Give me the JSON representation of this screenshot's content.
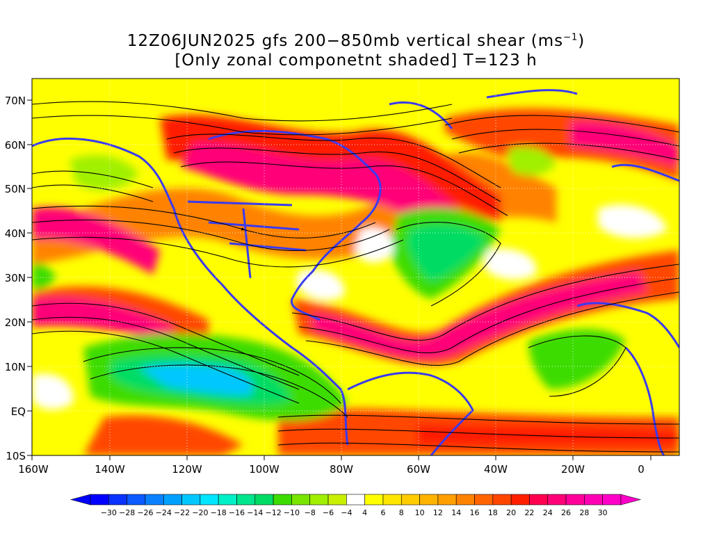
{
  "title": {
    "line1_prefix": "12Z06JUN2025 gfs 200−850mb vertical shear (ms",
    "line1_superscript": "−1",
    "line1_suffix": ")",
    "line2": "[Only zonal componetnt shaded] T=123 h"
  },
  "map": {
    "lon_labels": [
      "160W",
      "140W",
      "120W",
      "100W",
      "80W",
      "60W",
      "40W",
      "20W",
      "0"
    ],
    "lat_labels": [
      "70N",
      "60N",
      "50N",
      "40N",
      "30N",
      "20N",
      "10N",
      "EQ",
      "10S"
    ]
  },
  "colorbar": {
    "labels": [
      "−30",
      "−28",
      "−26",
      "−24",
      "−22",
      "−20",
      "−18",
      "−16",
      "−14",
      "−12",
      "−10",
      "−8",
      "−6",
      "−4",
      "4",
      "6",
      "8",
      "10",
      "12",
      "14",
      "16",
      "18",
      "20",
      "22",
      "24",
      "26",
      "28",
      "30"
    ],
    "colors": [
      "#0000ff",
      "#0a32ff",
      "#0a5aff",
      "#0a82ff",
      "#00a0ff",
      "#00c8ff",
      "#00e6ff",
      "#00f0c8",
      "#00e68c",
      "#00dc64",
      "#3cdc00",
      "#78e600",
      "#a0f000",
      "#c8f000",
      "#ffffff",
      "#ffff00",
      "#ffe600",
      "#ffcc00",
      "#ffb400",
      "#ffa000",
      "#ff8200",
      "#ff6400",
      "#ff4600",
      "#ff1e00",
      "#ff0050",
      "#ff0078",
      "#ff009b",
      "#ff00b4",
      "#ff00c8"
    ]
  }
}
